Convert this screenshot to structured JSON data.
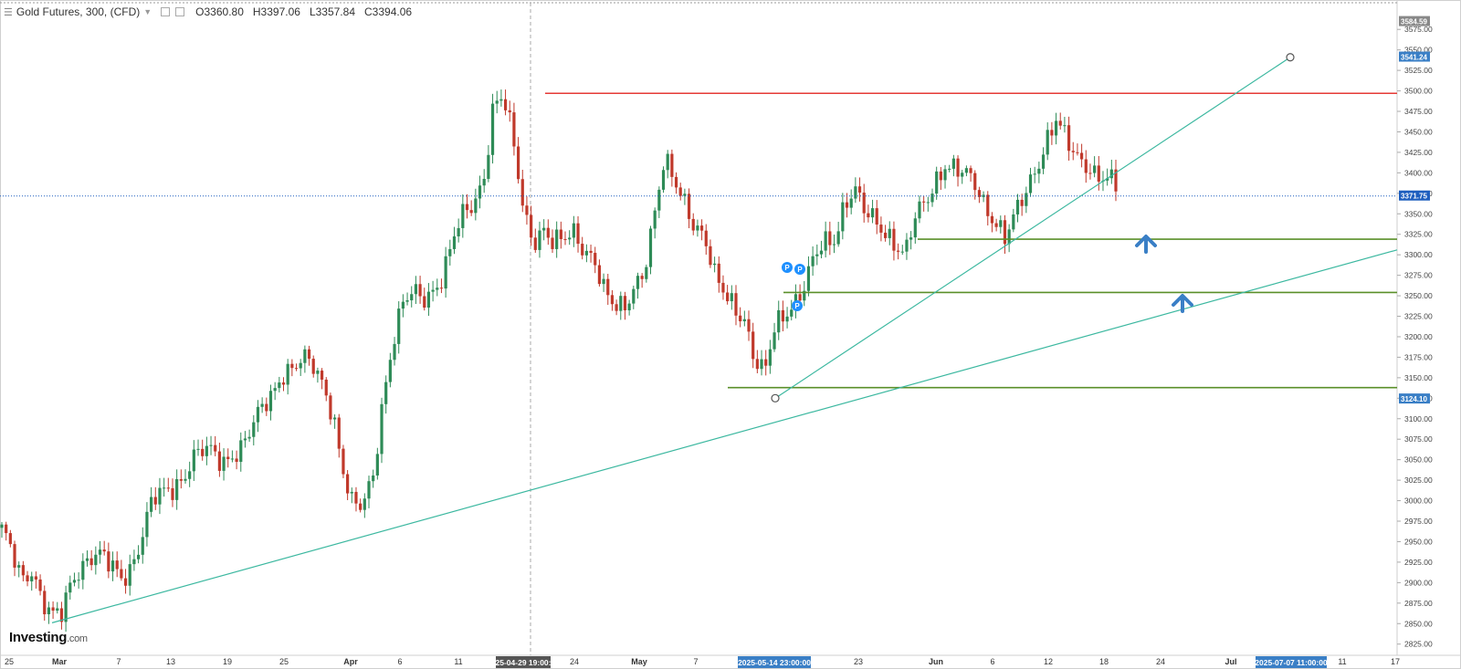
{
  "header": {
    "title": "Gold Futures, 300, (CFD)",
    "open": "O3360.80",
    "high": "H3397.06",
    "low": "L3357.84",
    "close": "C3394.06"
  },
  "logo": {
    "brand": "Investing",
    "suffix": ".com"
  },
  "colors": {
    "up": "#2e8b57",
    "down": "#c0392b",
    "resistance": "#e53935",
    "support": "#5a8f29",
    "trend": "#3cb8a0",
    "price_line": "#1f5fbf",
    "arrow": "#3a7fc6",
    "marker": "#1e90ff"
  },
  "chart_data": {
    "type": "candlestick",
    "ylim": [
      2808,
      3588
    ],
    "y_ticks": [
      "3575.00",
      "3550.00",
      "3525.00",
      "3500.00",
      "3475.00",
      "3450.00",
      "3425.00",
      "3400.00",
      "3375.00",
      "3350.00",
      "3325.00",
      "3300.00",
      "3275.00",
      "3250.00",
      "3225.00",
      "3200.00",
      "3175.00",
      "3150.00",
      "3125.00",
      "3100.00",
      "3075.00",
      "3050.00",
      "3025.00",
      "3000.00",
      "2975.00",
      "2950.00",
      "2925.00",
      "2900.00",
      "2875.00",
      "2850.00",
      "2825.00"
    ],
    "x_ticks": [
      "25",
      "Mar",
      "7",
      "13",
      "19",
      "25",
      "Apr",
      "6",
      "11",
      "24",
      "May",
      "7",
      "23",
      "Jun",
      "6",
      "12",
      "18",
      "24",
      "Jul",
      "11",
      "17"
    ],
    "price_labels": {
      "top": "3584.59",
      "target": "3541.24",
      "current": "3371.75",
      "low": "3124.10"
    },
    "time_labels": [
      "2025-04-29 19:00:00",
      "2025-05-14 23:00:00",
      "2025-07-07 11:00:00"
    ],
    "levels": {
      "resistance": 3497,
      "support_1": 3319,
      "support_2": 3254,
      "support_3": 3138
    },
    "trendlines": {
      "long_start": 2851,
      "long_end": 3306,
      "short_start": 3125,
      "short_end": 3541
    },
    "markers": [
      "P",
      "P",
      "P"
    ],
    "path_anchors": [
      2960,
      2935,
      2905,
      2920,
      2880,
      2855,
      2860,
      2905,
      2925,
      2935,
      2930,
      2915,
      2905,
      2925,
      2960,
      3000,
      3005,
      3015,
      3030,
      3055,
      3060,
      3055,
      3045,
      3060,
      3070,
      3090,
      3110,
      3130,
      3160,
      3165,
      3172,
      3160,
      3140,
      3110,
      3040,
      2990,
      2990,
      3030,
      3130,
      3200,
      3240,
      3250,
      3245,
      3260,
      3280,
      3320,
      3345,
      3360,
      3395,
      3488,
      3492,
      3430,
      3350,
      3320,
      3335,
      3312,
      3315,
      3325,
      3310,
      3300,
      3255,
      3232,
      3232,
      3265,
      3285,
      3345,
      3410,
      3390,
      3370,
      3340,
      3320,
      3270,
      3252,
      3240,
      3225,
      3170,
      3150,
      3210,
      3232,
      3245,
      3262,
      3295,
      3312,
      3322,
      3368,
      3380,
      3348,
      3338,
      3330,
      3318,
      3300,
      3342,
      3360,
      3390,
      3415,
      3405,
      3395,
      3382,
      3360,
      3345,
      3322,
      3346,
      3372,
      3405,
      3440,
      3468,
      3438,
      3415,
      3412,
      3403,
      3396,
      3382
    ]
  }
}
